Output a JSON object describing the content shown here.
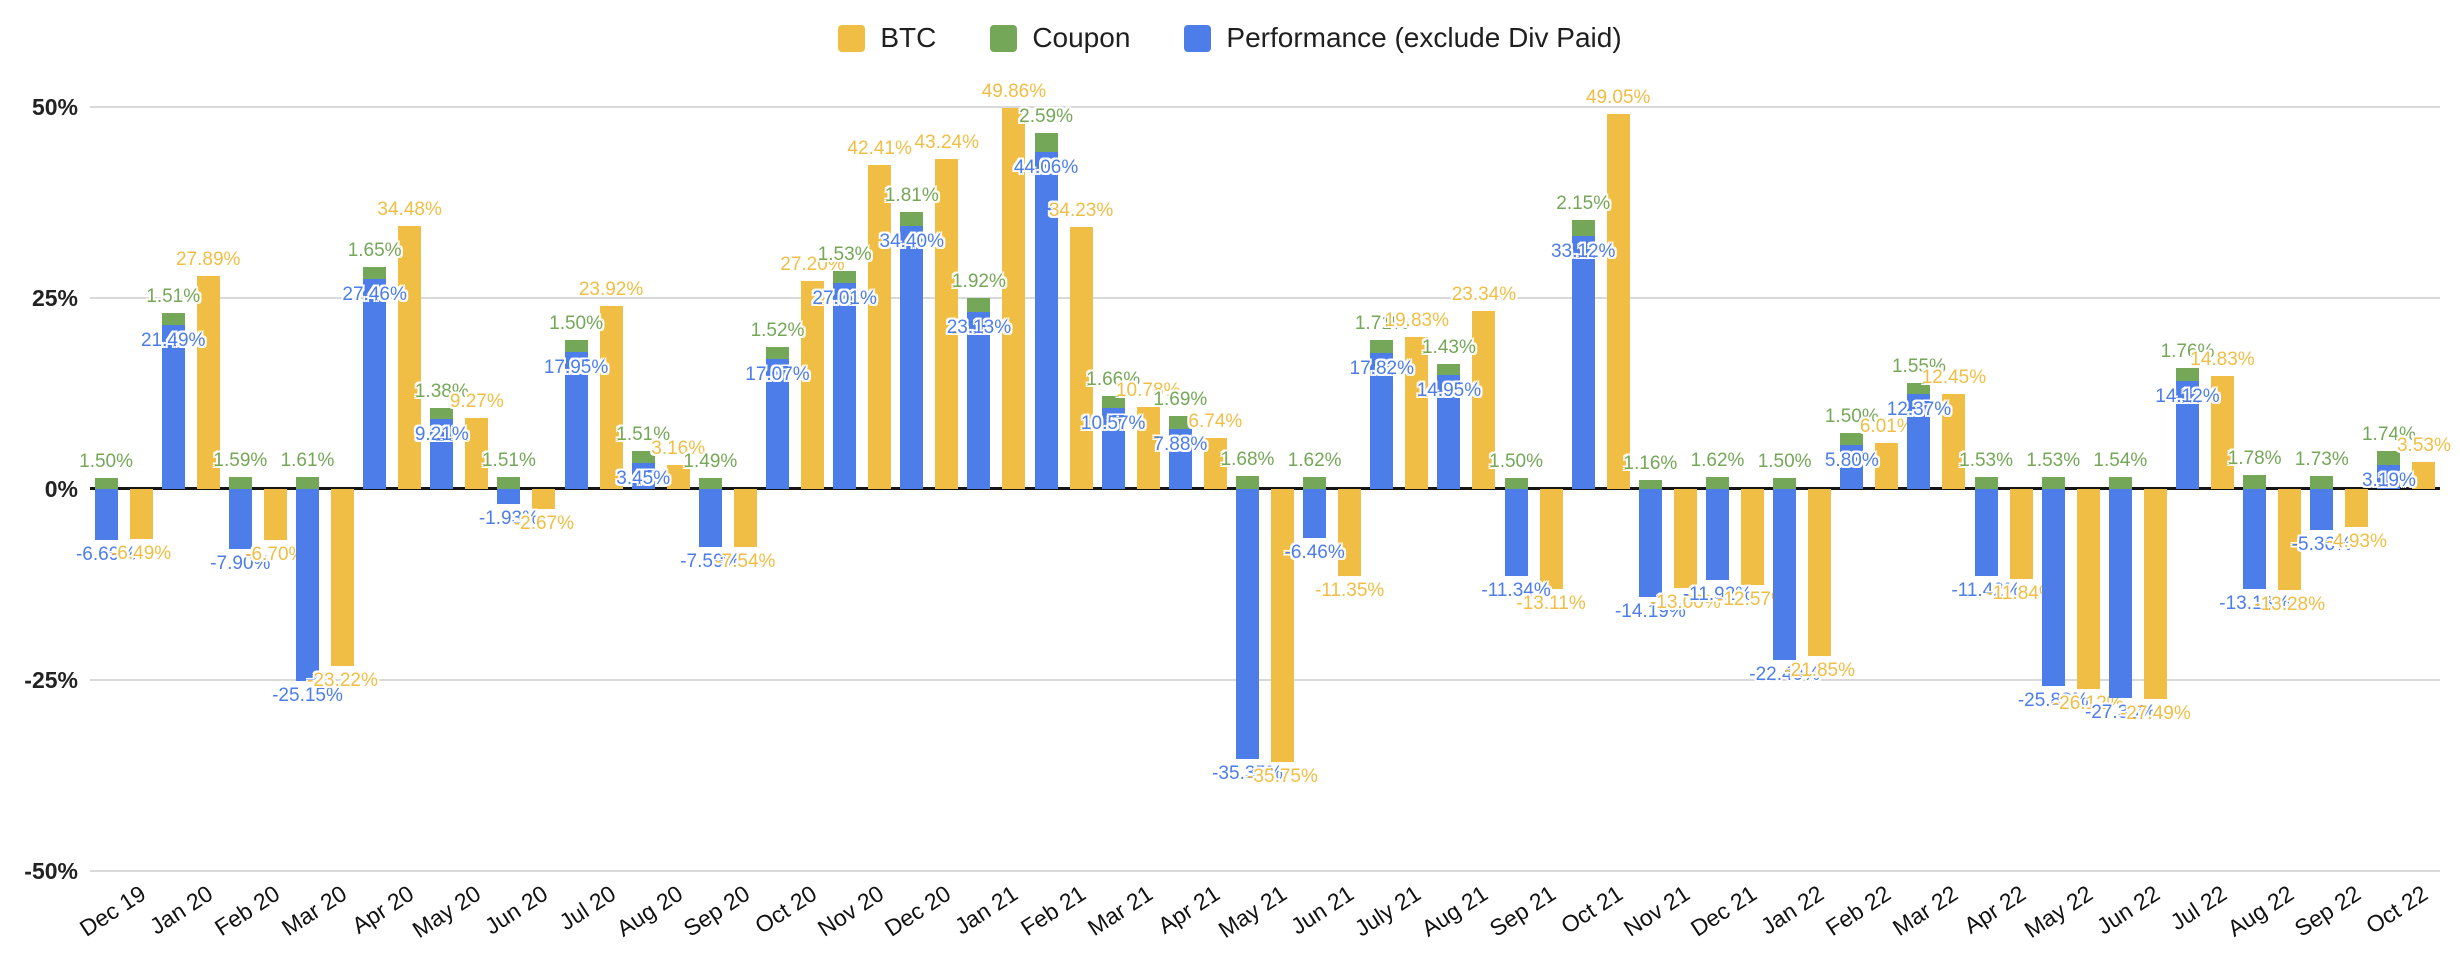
{
  "legend": {
    "items": [
      {
        "label": "BTC",
        "color": "#F0BE44"
      },
      {
        "label": "Coupon",
        "color": "#74A757"
      },
      {
        "label": "Performance (exclude Div Paid)",
        "color": "#4D7DE9"
      }
    ]
  },
  "y_axis": {
    "ticks": [
      "50%",
      "25%",
      "0%",
      "-25%",
      "-50%"
    ]
  },
  "chart_data": {
    "type": "bar",
    "title": "",
    "xlabel": "",
    "ylabel": "",
    "ylim": [
      -50,
      50
    ],
    "grid": "horizontal gridlines every 25%, zero axis emphasized in black",
    "legend_position": "top-center",
    "value_label_format": "0.00%",
    "structure": "two columns per month: Performance (blue) with Coupon (green) stacked on top, and BTC (yellow) as separate column",
    "categories": [
      "Dec 19",
      "Jan 20",
      "Feb 20",
      "Mar 20",
      "Apr 20",
      "May 20",
      "Jun 20",
      "Jul 20",
      "Aug 20",
      "Sep 20",
      "Oct 20",
      "Nov 20",
      "Dec 20",
      "Jan 21",
      "Feb 21",
      "Mar 21",
      "Apr 21",
      "May 21",
      "Jun 21",
      "July 21",
      "Aug 21",
      "Sep 21",
      "Oct 21",
      "Nov 21",
      "Dec 21",
      "Jan 22",
      "Feb 22",
      "Mar 22",
      "Apr 22",
      "May 22",
      "Jun 22",
      "Jul 22",
      "Aug 22",
      "Sep 22",
      "Oct 22"
    ],
    "series": [
      {
        "name": "BTC",
        "color": "#F0BE44",
        "values": [
          -6.49,
          27.89,
          -6.7,
          -23.22,
          34.48,
          9.27,
          -2.67,
          23.92,
          3.16,
          -7.54,
          27.2,
          42.41,
          43.24,
          49.86,
          34.23,
          10.78,
          6.74,
          -35.75,
          -11.35,
          19.83,
          23.34,
          -13.11,
          49.05,
          -13.0,
          -12.57,
          -21.85,
          6.01,
          12.45,
          -11.84,
          -26.12,
          -27.49,
          14.83,
          -13.28,
          -4.93,
          3.53
        ]
      },
      {
        "name": "Coupon",
        "color": "#74A757",
        "values": [
          1.5,
          1.51,
          1.59,
          1.61,
          1.65,
          1.38,
          1.51,
          1.5,
          1.51,
          1.49,
          1.52,
          1.53,
          1.81,
          1.92,
          2.59,
          1.66,
          1.69,
          1.68,
          1.62,
          1.71,
          1.43,
          1.5,
          2.15,
          1.16,
          1.62,
          1.5,
          1.5,
          1.55,
          1.53,
          1.53,
          1.54,
          1.76,
          1.78,
          1.73,
          1.74
        ]
      },
      {
        "name": "Performance (exclude Div Paid)",
        "color": "#4D7DE9",
        "values": [
          -6.69,
          21.49,
          -7.9,
          -25.15,
          27.46,
          9.21,
          -1.93,
          17.95,
          3.45,
          -7.59,
          17.07,
          27.01,
          34.4,
          23.13,
          44.06,
          10.57,
          7.88,
          -35.35,
          -6.46,
          17.82,
          14.95,
          -11.34,
          33.12,
          -14.19,
          -11.92,
          -22.4,
          5.8,
          12.37,
          -11.42,
          -25.83,
          -27.38,
          14.12,
          -13.13,
          -5.36,
          3.19
        ]
      }
    ]
  }
}
